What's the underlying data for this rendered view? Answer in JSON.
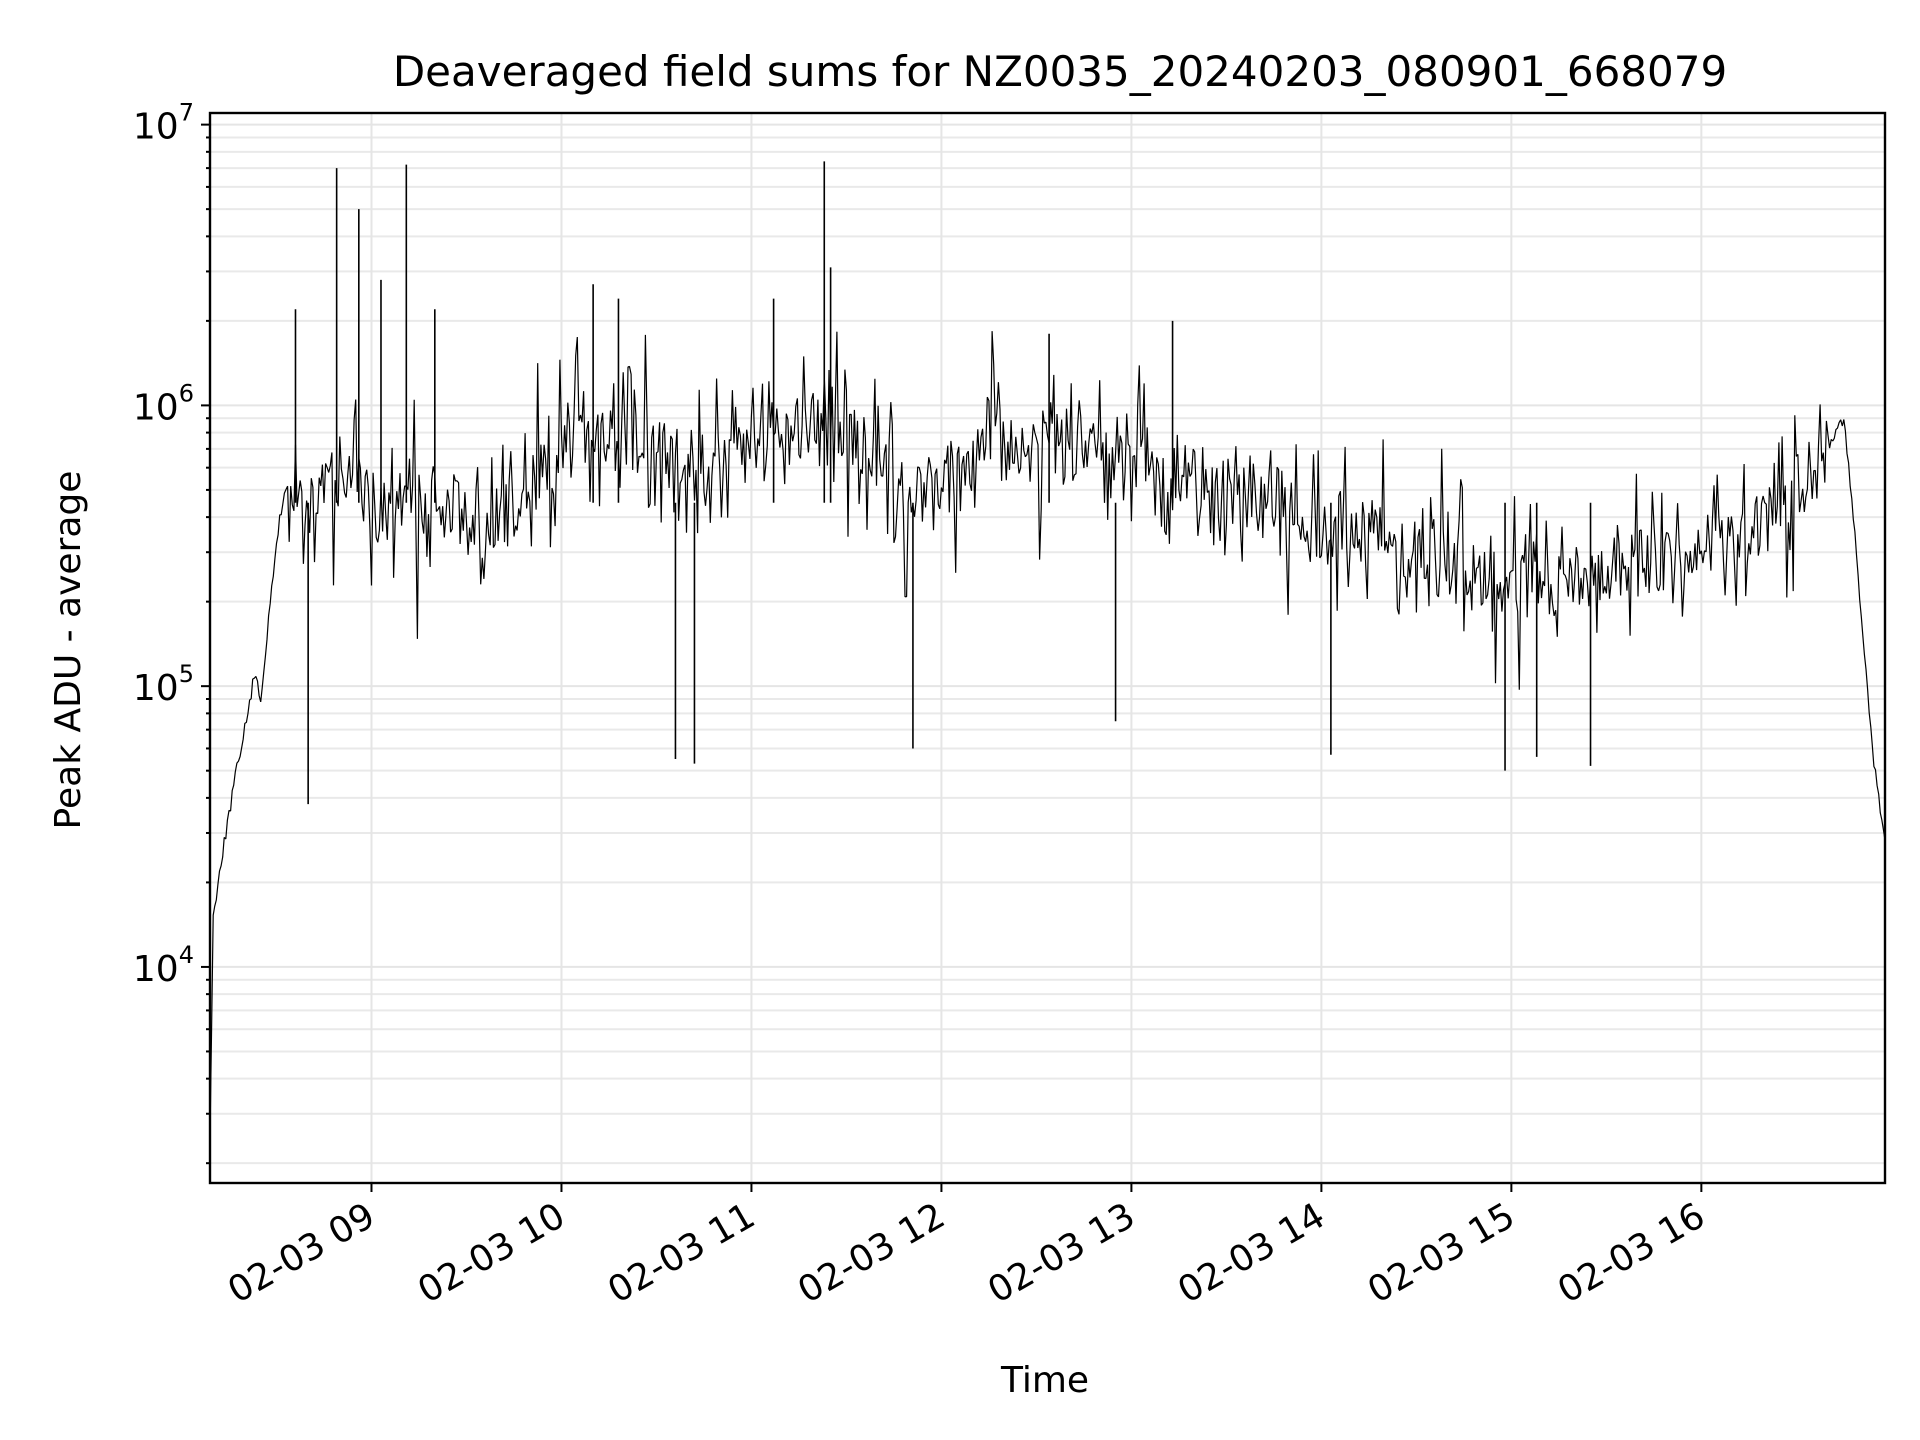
{
  "chart_data": {
    "type": "line",
    "title": "Deaveraged field sums for NZ0035_20240203_080901_668079",
    "xlabel": "Time",
    "ylabel": "Peak ADU - average",
    "yscale": "log",
    "ylim": [
      1700,
      11000000
    ],
    "xlim": [
      "2024-02-03 08:09:00",
      "2024-02-03 16:58:00"
    ],
    "grid": true,
    "line_color": "#000000",
    "x_ticks": [
      {
        "label": "02-03 09",
        "value": "2024-02-03 09:00"
      },
      {
        "label": "02-03 10",
        "value": "2024-02-03 10:00"
      },
      {
        "label": "02-03 11",
        "value": "2024-02-03 11:00"
      },
      {
        "label": "02-03 12",
        "value": "2024-02-03 12:00"
      },
      {
        "label": "02-03 13",
        "value": "2024-02-03 13:00"
      },
      {
        "label": "02-03 14",
        "value": "2024-02-03 14:00"
      },
      {
        "label": "02-03 15",
        "value": "2024-02-03 15:00"
      },
      {
        "label": "02-03 16",
        "value": "2024-02-03 16:00"
      }
    ],
    "y_ticks": [
      {
        "value": 10000,
        "base": "10",
        "exp": "4"
      },
      {
        "value": 100000,
        "base": "10",
        "exp": "5"
      },
      {
        "value": 1000000,
        "base": "10",
        "exp": "6"
      },
      {
        "value": 10000000,
        "base": "10",
        "exp": "7"
      }
    ],
    "series": [
      {
        "x": [
          "2024-02-03 08:09",
          "2024-02-03 08:10",
          "2024-02-03 08:12",
          "2024-02-03 08:15",
          "2024-02-03 08:18",
          "2024-02-03 08:21",
          "2024-02-03 08:23",
          "2024-02-03 08:25",
          "2024-02-03 08:27",
          "2024-02-03 08:29",
          "2024-02-03 08:31",
          "2024-02-03 08:33",
          "2024-02-03 08:36",
          "2024-02-03 08:39",
          "2024-02-03 08:42",
          "2024-02-03 08:45",
          "2024-02-03 08:48",
          "2024-02-03 08:51",
          "2024-02-03 08:54",
          "2024-02-03 08:57",
          "2024-02-03 09:00",
          "2024-02-03 09:05",
          "2024-02-03 09:10",
          "2024-02-03 09:15",
          "2024-02-03 09:20",
          "2024-02-03 09:25",
          "2024-02-03 09:30",
          "2024-02-03 09:35",
          "2024-02-03 09:40",
          "2024-02-03 09:45",
          "2024-02-03 09:50",
          "2024-02-03 09:55",
          "2024-02-03 10:00",
          "2024-02-03 10:10",
          "2024-02-03 10:20",
          "2024-02-03 10:30",
          "2024-02-03 10:40",
          "2024-02-03 10:50",
          "2024-02-03 11:00",
          "2024-02-03 11:10",
          "2024-02-03 11:20",
          "2024-02-03 11:30",
          "2024-02-03 11:40",
          "2024-02-03 11:50",
          "2024-02-03 12:00",
          "2024-02-03 12:15",
          "2024-02-03 12:30",
          "2024-02-03 12:45",
          "2024-02-03 13:00",
          "2024-02-03 13:15",
          "2024-02-03 13:30",
          "2024-02-03 13:45",
          "2024-02-03 14:00",
          "2024-02-03 14:15",
          "2024-02-03 14:30",
          "2024-02-03 14:45",
          "2024-02-03 15:00",
          "2024-02-03 15:15",
          "2024-02-03 15:30",
          "2024-02-03 15:45",
          "2024-02-03 16:00",
          "2024-02-03 16:15",
          "2024-02-03 16:30",
          "2024-02-03 16:40",
          "2024-02-03 16:45",
          "2024-02-03 16:48",
          "2024-02-03 16:51",
          "2024-02-03 16:54",
          "2024-02-03 16:58"
        ],
        "y": [
          2500,
          15000,
          22000,
          35000,
          55000,
          80000,
          110000,
          90000,
          150000,
          250000,
          400000,
          500000,
          450000,
          400000,
          380000,
          500000,
          600000,
          550000,
          700000,
          500000,
          450000,
          400000,
          420000,
          380000,
          430000,
          460000,
          350000,
          300000,
          400000,
          450000,
          550000,
          600000,
          650000,
          750000,
          800000,
          700000,
          550000,
          650000,
          700000,
          750000,
          900000,
          800000,
          650000,
          500000,
          600000,
          700000,
          750000,
          700000,
          650000,
          550000,
          500000,
          450000,
          400000,
          350000,
          300000,
          250000,
          220000,
          230000,
          250000,
          280000,
          300000,
          350000,
          450000,
          700000,
          900000,
          400000,
          150000,
          60000,
          27000
        ]
      }
    ],
    "peaks": [
      {
        "x": "2024-02-03 08:36",
        "y": 2200000
      },
      {
        "x": "2024-02-03 08:40",
        "y": 38000
      },
      {
        "x": "2024-02-03 08:49",
        "y": 7000000
      },
      {
        "x": "2024-02-03 08:56",
        "y": 5000000
      },
      {
        "x": "2024-02-03 09:03",
        "y": 2800000
      },
      {
        "x": "2024-02-03 09:11",
        "y": 7200000
      },
      {
        "x": "2024-02-03 09:20",
        "y": 2200000
      },
      {
        "x": "2024-02-03 10:10",
        "y": 2700000
      },
      {
        "x": "2024-02-03 10:18",
        "y": 2400000
      },
      {
        "x": "2024-02-03 10:36",
        "y": 55000
      },
      {
        "x": "2024-02-03 10:42",
        "y": 53000
      },
      {
        "x": "2024-02-03 11:07",
        "y": 2400000
      },
      {
        "x": "2024-02-03 11:23",
        "y": 7400000
      },
      {
        "x": "2024-02-03 11:25",
        "y": 3100000
      },
      {
        "x": "2024-02-03 11:51",
        "y": 60000
      },
      {
        "x": "2024-02-03 12:34",
        "y": 1800000
      },
      {
        "x": "2024-02-03 12:55",
        "y": 75000
      },
      {
        "x": "2024-02-03 13:13",
        "y": 2000000
      },
      {
        "x": "2024-02-03 14:03",
        "y": 57000
      },
      {
        "x": "2024-02-03 14:58",
        "y": 50000
      },
      {
        "x": "2024-02-03 15:08",
        "y": 56000
      },
      {
        "x": "2024-02-03 15:25",
        "y": 52000
      }
    ]
  }
}
